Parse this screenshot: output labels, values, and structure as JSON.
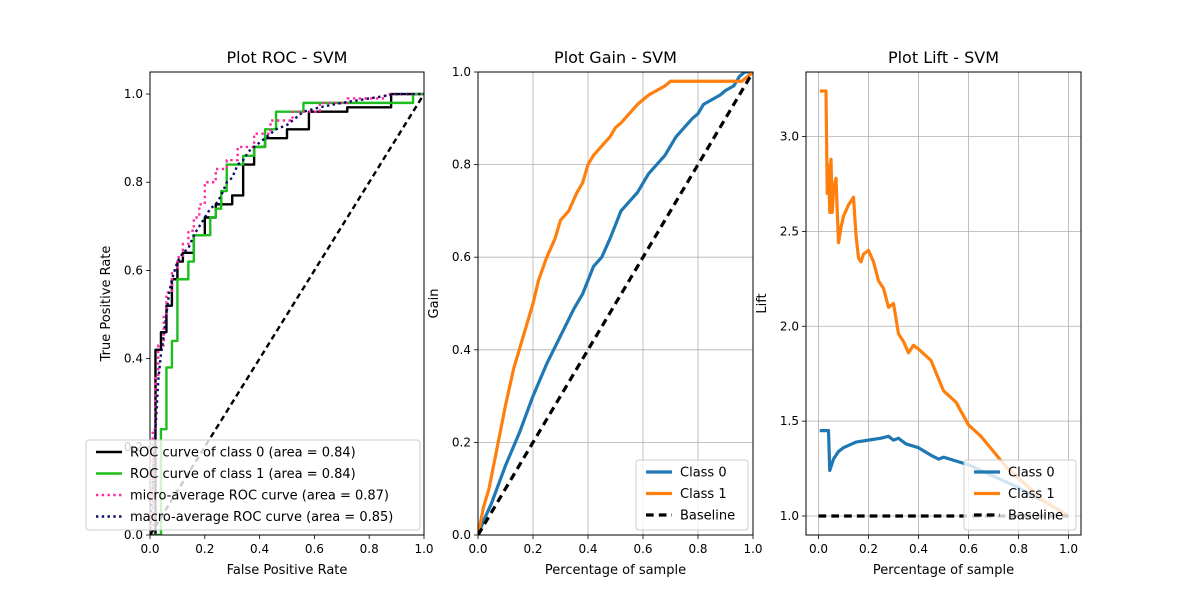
{
  "chart_data": [
    {
      "type": "line",
      "title": "Plot ROC - SVM",
      "xlabel": "False Positive Rate",
      "ylabel": "True Positive Rate",
      "xlim": [
        0,
        1
      ],
      "ylim": [
        0,
        1.05
      ],
      "xticks": [
        "0.0",
        "0.2",
        "0.4",
        "0.6",
        "0.8",
        "1.0"
      ],
      "yticks": [
        "0.0",
        "0.2",
        "0.4",
        "0.6",
        "0.8",
        "1.0"
      ],
      "grid": false,
      "legend_position": "lower-right",
      "series": [
        {
          "name": "ROC curve of class 0 (area = 0.84)",
          "color": "#000000",
          "style": "solid",
          "step": true,
          "x": [
            0,
            0.02,
            0.02,
            0.04,
            0.04,
            0.06,
            0.06,
            0.08,
            0.08,
            0.1,
            0.1,
            0.12,
            0.12,
            0.16,
            0.16,
            0.2,
            0.2,
            0.24,
            0.24,
            0.3,
            0.3,
            0.34,
            0.34,
            0.38,
            0.38,
            0.42,
            0.42,
            0.5,
            0.5,
            0.58,
            0.58,
            0.72,
            0.72,
            0.88,
            0.88,
            1.0
          ],
          "y": [
            0,
            0,
            0.42,
            0.42,
            0.46,
            0.46,
            0.52,
            0.52,
            0.58,
            0.58,
            0.62,
            0.62,
            0.64,
            0.64,
            0.68,
            0.68,
            0.72,
            0.72,
            0.75,
            0.75,
            0.77,
            0.77,
            0.84,
            0.84,
            0.88,
            0.88,
            0.9,
            0.9,
            0.92,
            0.92,
            0.96,
            0.96,
            0.97,
            0.97,
            1.0,
            1.0
          ]
        },
        {
          "name": "ROC curve of class 1 (area = 0.84)",
          "color": "#1cbf1c",
          "style": "solid",
          "step": true,
          "x": [
            0,
            0.04,
            0.04,
            0.06,
            0.06,
            0.08,
            0.08,
            0.1,
            0.1,
            0.14,
            0.14,
            0.16,
            0.16,
            0.22,
            0.22,
            0.24,
            0.24,
            0.26,
            0.26,
            0.28,
            0.28,
            0.34,
            0.34,
            0.38,
            0.38,
            0.42,
            0.42,
            0.46,
            0.46,
            0.56,
            0.56,
            0.66,
            0.66,
            0.96,
            0.96,
            1.0
          ],
          "y": [
            0,
            0,
            0.24,
            0.24,
            0.38,
            0.38,
            0.44,
            0.44,
            0.58,
            0.58,
            0.62,
            0.62,
            0.68,
            0.68,
            0.72,
            0.72,
            0.74,
            0.74,
            0.78,
            0.78,
            0.84,
            0.84,
            0.86,
            0.86,
            0.88,
            0.88,
            0.92,
            0.92,
            0.96,
            0.96,
            0.98,
            0.98,
            0.98,
            0.98,
            1.0,
            1.0
          ]
        },
        {
          "name": "micro-average ROC curve (area = 0.87)",
          "color": "#ff2b9e",
          "style": "dotted",
          "step": true,
          "x": [
            0,
            0.01,
            0.01,
            0.02,
            0.02,
            0.03,
            0.03,
            0.05,
            0.05,
            0.06,
            0.06,
            0.08,
            0.08,
            0.1,
            0.1,
            0.12,
            0.12,
            0.14,
            0.14,
            0.16,
            0.16,
            0.18,
            0.18,
            0.2,
            0.2,
            0.24,
            0.24,
            0.28,
            0.28,
            0.32,
            0.32,
            0.38,
            0.38,
            0.44,
            0.44,
            0.52,
            0.52,
            0.62,
            0.62,
            0.72,
            0.72,
            0.86,
            0.86,
            1.0
          ],
          "y": [
            0,
            0,
            0.24,
            0.24,
            0.36,
            0.36,
            0.43,
            0.43,
            0.5,
            0.5,
            0.55,
            0.55,
            0.6,
            0.6,
            0.63,
            0.63,
            0.66,
            0.66,
            0.69,
            0.69,
            0.72,
            0.72,
            0.75,
            0.75,
            0.8,
            0.8,
            0.83,
            0.83,
            0.85,
            0.85,
            0.88,
            0.88,
            0.91,
            0.91,
            0.94,
            0.94,
            0.96,
            0.96,
            0.98,
            0.98,
            0.99,
            0.99,
            1.0,
            1.0
          ]
        },
        {
          "name": "macro-average ROC curve (area = 0.85)",
          "color": "#0b0b66",
          "style": "dotted",
          "step": false,
          "x": [
            0,
            0.02,
            0.03,
            0.04,
            0.05,
            0.06,
            0.07,
            0.08,
            0.09,
            0.1,
            0.12,
            0.14,
            0.16,
            0.18,
            0.2,
            0.22,
            0.24,
            0.26,
            0.28,
            0.3,
            0.32,
            0.34,
            0.36,
            0.38,
            0.42,
            0.46,
            0.5,
            0.56,
            0.62,
            0.7,
            0.8,
            0.9,
            1.0
          ],
          "y": [
            0,
            0.24,
            0.35,
            0.41,
            0.45,
            0.5,
            0.55,
            0.58,
            0.6,
            0.62,
            0.64,
            0.65,
            0.68,
            0.7,
            0.72,
            0.74,
            0.75,
            0.77,
            0.8,
            0.81,
            0.84,
            0.85,
            0.87,
            0.88,
            0.9,
            0.92,
            0.93,
            0.96,
            0.97,
            0.98,
            0.99,
            1.0,
            1.0
          ]
        },
        {
          "name": "",
          "color": "#000000",
          "style": "dashed",
          "step": false,
          "x": [
            0,
            1
          ],
          "y": [
            0,
            1
          ]
        }
      ]
    },
    {
      "type": "line",
      "title": "Plot Gain - SVM",
      "xlabel": "Percentage of sample",
      "ylabel": "Gain",
      "xlim": [
        0,
        1
      ],
      "ylim": [
        0,
        1
      ],
      "xticks": [
        "0.0",
        "0.2",
        "0.4",
        "0.6",
        "0.8",
        "1.0"
      ],
      "yticks": [
        "0.0",
        "0.2",
        "0.4",
        "0.6",
        "0.8",
        "1.0"
      ],
      "grid": true,
      "legend_position": "lower-right",
      "series": [
        {
          "name": "Class 0",
          "color": "#1f77b4",
          "style": "solid",
          "x": [
            0,
            0.02,
            0.05,
            0.1,
            0.15,
            0.2,
            0.25,
            0.3,
            0.35,
            0.38,
            0.4,
            0.42,
            0.45,
            0.48,
            0.5,
            0.52,
            0.55,
            0.58,
            0.6,
            0.62,
            0.65,
            0.68,
            0.7,
            0.72,
            0.75,
            0.78,
            0.8,
            0.82,
            0.85,
            0.88,
            0.9,
            0.93,
            0.95,
            0.97,
            1.0
          ],
          "y": [
            0,
            0.03,
            0.07,
            0.15,
            0.22,
            0.3,
            0.37,
            0.43,
            0.49,
            0.52,
            0.55,
            0.58,
            0.6,
            0.64,
            0.67,
            0.7,
            0.72,
            0.74,
            0.76,
            0.78,
            0.8,
            0.82,
            0.84,
            0.86,
            0.88,
            0.9,
            0.91,
            0.93,
            0.94,
            0.95,
            0.96,
            0.97,
            0.99,
            1.0,
            1.0
          ]
        },
        {
          "name": "Class 1",
          "color": "#ff7f0e",
          "style": "solid",
          "x": [
            0,
            0.02,
            0.04,
            0.06,
            0.08,
            0.1,
            0.13,
            0.16,
            0.2,
            0.22,
            0.25,
            0.28,
            0.3,
            0.33,
            0.36,
            0.38,
            0.4,
            0.42,
            0.45,
            0.48,
            0.5,
            0.52,
            0.55,
            0.58,
            0.6,
            0.62,
            0.65,
            0.68,
            0.7,
            0.72,
            0.8,
            0.9,
            0.96,
            1.0
          ],
          "y": [
            0,
            0.06,
            0.1,
            0.16,
            0.22,
            0.28,
            0.36,
            0.42,
            0.5,
            0.55,
            0.6,
            0.64,
            0.68,
            0.7,
            0.74,
            0.76,
            0.8,
            0.82,
            0.84,
            0.86,
            0.88,
            0.89,
            0.91,
            0.93,
            0.94,
            0.95,
            0.96,
            0.97,
            0.98,
            0.98,
            0.98,
            0.98,
            0.98,
            1.0
          ]
        },
        {
          "name": "Baseline",
          "color": "#000000",
          "style": "dashed",
          "x": [
            0,
            1
          ],
          "y": [
            0,
            1
          ]
        }
      ]
    },
    {
      "type": "line",
      "title": "Plot Lift - SVM",
      "xlabel": "Percentage of sample",
      "ylabel": "Lift",
      "xlim": [
        -0.05,
        1.05
      ],
      "ylim": [
        0.9,
        3.34
      ],
      "xticks": [
        "0.0",
        "0.2",
        "0.4",
        "0.6",
        "0.8",
        "1.0"
      ],
      "yticks": [
        "1.0",
        "1.5",
        "2.0",
        "2.5",
        "3.0"
      ],
      "xtick_values": [
        0,
        0.2,
        0.4,
        0.6,
        0.8,
        1.0
      ],
      "ytick_values": [
        1.0,
        1.5,
        2.0,
        2.5,
        3.0
      ],
      "grid": true,
      "legend_position": "lower-right",
      "series": [
        {
          "name": "Class 0",
          "color": "#1f77b4",
          "style": "solid",
          "x": [
            0.005,
            0.04,
            0.045,
            0.06,
            0.08,
            0.1,
            0.15,
            0.2,
            0.25,
            0.28,
            0.3,
            0.32,
            0.35,
            0.4,
            0.45,
            0.48,
            0.5,
            0.55,
            0.6,
            0.65,
            0.7,
            0.75,
            0.8,
            0.85,
            0.9,
            0.95,
            1.0
          ],
          "y": [
            1.45,
            1.45,
            1.24,
            1.3,
            1.34,
            1.36,
            1.39,
            1.4,
            1.41,
            1.42,
            1.4,
            1.41,
            1.38,
            1.36,
            1.32,
            1.3,
            1.31,
            1.29,
            1.27,
            1.24,
            1.21,
            1.18,
            1.15,
            1.11,
            1.08,
            1.04,
            1.0
          ]
        },
        {
          "name": "Class 1",
          "color": "#ff7f0e",
          "style": "solid",
          "x": [
            0.005,
            0.03,
            0.035,
            0.04,
            0.045,
            0.05,
            0.055,
            0.06,
            0.07,
            0.08,
            0.09,
            0.1,
            0.12,
            0.14,
            0.15,
            0.16,
            0.17,
            0.18,
            0.2,
            0.22,
            0.24,
            0.26,
            0.28,
            0.3,
            0.32,
            0.34,
            0.36,
            0.38,
            0.4,
            0.45,
            0.5,
            0.55,
            0.6,
            0.65,
            0.7,
            0.75,
            0.8,
            0.85,
            0.9,
            0.95,
            1.0
          ],
          "y": [
            3.24,
            3.24,
            2.7,
            2.85,
            2.6,
            2.88,
            2.6,
            2.72,
            2.78,
            2.44,
            2.52,
            2.58,
            2.64,
            2.68,
            2.48,
            2.36,
            2.34,
            2.38,
            2.4,
            2.34,
            2.24,
            2.2,
            2.1,
            2.12,
            1.96,
            1.92,
            1.86,
            1.9,
            1.88,
            1.82,
            1.66,
            1.6,
            1.48,
            1.42,
            1.34,
            1.26,
            1.2,
            1.14,
            1.08,
            1.04,
            1.0
          ]
        },
        {
          "name": "Baseline",
          "color": "#000000",
          "style": "dashed",
          "x": [
            0,
            1
          ],
          "y": [
            1,
            1
          ]
        }
      ]
    }
  ]
}
